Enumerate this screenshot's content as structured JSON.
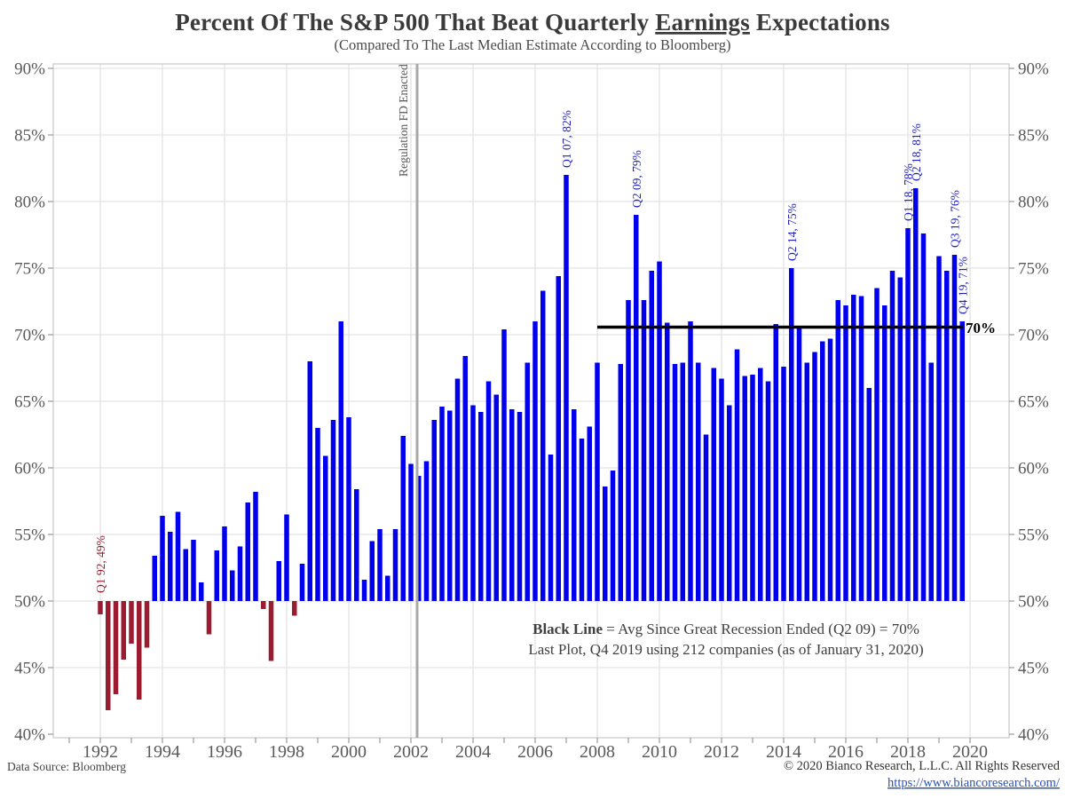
{
  "header": {
    "title_prefix": "Percent Of The S&P 500 That Beat Quarterly ",
    "title_underlined": "Earnings",
    "title_suffix": " Expectations",
    "subtitle": "(Compared To The Last Median Estimate According to Bloomberg)"
  },
  "notes": {
    "line1_bold": "Black Line",
    "line1_rest": " = Avg Since Great Recession Ended (Q2 09) = 70%",
    "line2": "Last Plot, Q4 2019 using 212 companies (as of January 31, 2020)"
  },
  "footer": {
    "data_source": "Data Source: Bloomberg",
    "copyright": "© 2020 Bianco Research, L.L.C. All Rights Reserved",
    "link": "https://www.biancoresearch.com/"
  },
  "colors": {
    "bar_above": "#0000ee",
    "bar_below": "#9b1b31",
    "annotation_blue": "#1f1fbe",
    "annotation_red": "#9b1b31",
    "gridline": "#e9e9e9",
    "border": "#cfcfcf",
    "tick": "#9a9a9a",
    "event_line": "#a9a9a9",
    "avg_line": "#000000"
  },
  "chart_data": {
    "type": "bar",
    "title": "Percent Of The S&P 500 That Beat Quarterly Earnings Expectations",
    "subtitle": "(Compared To The Last Median Estimate According to Bloomberg)",
    "unit": "percent of companies",
    "frequency": "quarterly",
    "baseline": 50,
    "ylim": [
      40,
      90
    ],
    "y_ticks": [
      40,
      45,
      50,
      55,
      60,
      65,
      70,
      75,
      80,
      85,
      90
    ],
    "x_label_years": [
      1992,
      1994,
      1996,
      1998,
      2000,
      2002,
      2004,
      2006,
      2008,
      2010,
      2012,
      2014,
      2016,
      2018,
      2020
    ],
    "quarterly_beat_rates": [
      {
        "year": 1992,
        "q": [
          49.0,
          41.8,
          43.0,
          45.6
        ]
      },
      {
        "year": 1993,
        "q": [
          46.8,
          42.6,
          46.5,
          53.4
        ]
      },
      {
        "year": 1994,
        "q": [
          56.4,
          55.2,
          56.7,
          53.9
        ]
      },
      {
        "year": 1995,
        "q": [
          54.6,
          51.4,
          47.5,
          53.8
        ]
      },
      {
        "year": 1996,
        "q": [
          55.6,
          52.3,
          54.1,
          57.4
        ]
      },
      {
        "year": 1997,
        "q": [
          58.2,
          49.4,
          45.5,
          53.0
        ]
      },
      {
        "year": 1998,
        "q": [
          56.5,
          48.9,
          52.8,
          68.0
        ]
      },
      {
        "year": 1999,
        "q": [
          63.0,
          60.9,
          63.6,
          71.0
        ]
      },
      {
        "year": 2000,
        "q": [
          63.8,
          58.4,
          51.6,
          54.5
        ]
      },
      {
        "year": 2001,
        "q": [
          55.4,
          51.9,
          55.4,
          62.4
        ]
      },
      {
        "year": 2002,
        "q": [
          60.3,
          59.4,
          60.5,
          63.6
        ]
      },
      {
        "year": 2003,
        "q": [
          64.6,
          64.3,
          66.7,
          68.4
        ]
      },
      {
        "year": 2004,
        "q": [
          64.7,
          64.2,
          66.5,
          65.5
        ]
      },
      {
        "year": 2005,
        "q": [
          70.4,
          64.4,
          64.2,
          67.9
        ]
      },
      {
        "year": 2006,
        "q": [
          71.0,
          73.3,
          61.0,
          74.4
        ]
      },
      {
        "year": 2007,
        "q": [
          82.0,
          64.4,
          62.2,
          63.1
        ]
      },
      {
        "year": 2008,
        "q": [
          67.9,
          58.6,
          59.8,
          67.8
        ]
      },
      {
        "year": 2009,
        "q": [
          72.6,
          79.0,
          72.6,
          74.8
        ]
      },
      {
        "year": 2010,
        "q": [
          75.5,
          70.9,
          67.8,
          67.9
        ]
      },
      {
        "year": 2011,
        "q": [
          71.0,
          67.9,
          62.5,
          67.5
        ]
      },
      {
        "year": 2012,
        "q": [
          66.7,
          64.7,
          68.9,
          66.9
        ]
      },
      {
        "year": 2013,
        "q": [
          67.0,
          67.5,
          66.5,
          70.8
        ]
      },
      {
        "year": 2014,
        "q": [
          67.6,
          75.0,
          70.6,
          67.9
        ]
      },
      {
        "year": 2015,
        "q": [
          68.7,
          69.5,
          69.7,
          72.6
        ]
      },
      {
        "year": 2016,
        "q": [
          72.2,
          73.0,
          72.9,
          66.0
        ]
      },
      {
        "year": 2017,
        "q": [
          73.5,
          72.2,
          74.8,
          74.3
        ]
      },
      {
        "year": 2018,
        "q": [
          78.0,
          81.0,
          77.6,
          67.9
        ]
      },
      {
        "year": 2019,
        "q": [
          75.9,
          74.8,
          76.0,
          71.0
        ]
      }
    ],
    "annotations": [
      {
        "text": "Q1 92, 49%",
        "year": 1992,
        "quarter": 1,
        "value": 49,
        "color": "#9b1b31"
      },
      {
        "text": "Q1 07, 82%",
        "year": 2007,
        "quarter": 1,
        "value": 82,
        "color": "#1f1fbe"
      },
      {
        "text": "Q2 09, 79%",
        "year": 2009,
        "quarter": 2,
        "value": 79,
        "color": "#1f1fbe"
      },
      {
        "text": "Q2 14, 75%",
        "year": 2014,
        "quarter": 2,
        "value": 75,
        "color": "#1f1fbe"
      },
      {
        "text": "Q1 18, 78%",
        "year": 2018,
        "quarter": 1,
        "value": 78,
        "color": "#1f1fbe"
      },
      {
        "text": "Q2 18, 81%",
        "year": 2018,
        "quarter": 2,
        "value": 81,
        "color": "#1f1fbe"
      },
      {
        "text": "Q3 19, 76%",
        "year": 2019,
        "quarter": 3,
        "value": 76,
        "color": "#1f1fbe"
      },
      {
        "text": "Q4 19, 71%",
        "year": 2019,
        "quarter": 4,
        "value": 71,
        "color": "#1f1fbe"
      }
    ],
    "avg_line": {
      "label": "70%",
      "value": 70,
      "from_year": 2008.0,
      "to_year": 2019.77
    },
    "event_line": {
      "label": "Regulation FD Enacted",
      "year": 2002.2
    },
    "legend_position": "none",
    "grid": true
  }
}
